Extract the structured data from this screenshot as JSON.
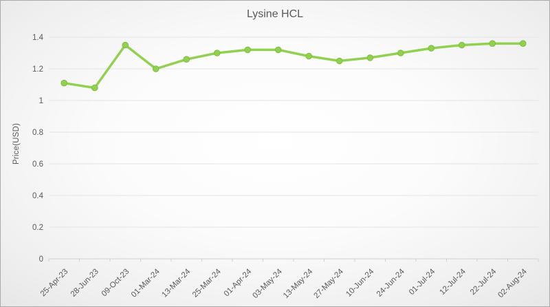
{
  "chart_data": {
    "type": "line",
    "title": "Lysine HCL",
    "xlabel": "",
    "ylabel": "Price(USD)",
    "categories": [
      "25-Apr-23",
      "28-Jun-23",
      "09-Oct-23",
      "01-Mar-24",
      "13-Mar-24",
      "25-Mar-24",
      "01-Apr-24",
      "03-May-24",
      "13-May-24",
      "27-May-24",
      "10-Jun-24",
      "24-Jun-24",
      "01-Jul-24",
      "12-Jul-24",
      "22-Jul-24",
      "02-Aug-24"
    ],
    "series": [
      {
        "name": "Lysine HCL",
        "values": [
          1.11,
          1.08,
          1.35,
          1.2,
          1.26,
          1.3,
          1.32,
          1.32,
          1.28,
          1.25,
          1.27,
          1.3,
          1.33,
          1.35,
          1.36,
          1.36
        ]
      }
    ],
    "ylim": [
      0,
      1.4
    ],
    "ytick_labels": [
      "0",
      "0.2",
      "0.4",
      "0.6",
      "0.8",
      "1",
      "1.2",
      "1.4"
    ],
    "grid": true,
    "legend_position": "none",
    "colors": {
      "line": "#92d050",
      "marker": "#92d050",
      "text": "#595959",
      "gridline": "#e4e4e4"
    }
  }
}
